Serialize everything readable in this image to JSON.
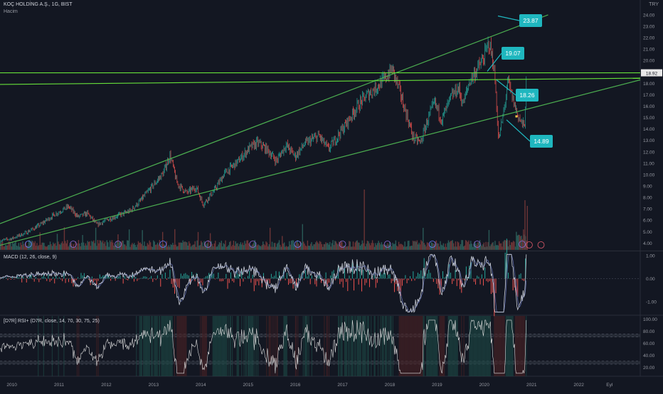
{
  "header": {
    "symbol": "KOÇ HOLDİNG A.Ş., 1G, BIST",
    "volume_label": "Hacim",
    "currency": "TRY"
  },
  "macd_label": "MACD (12, 26, close, 9)",
  "rsi_label": "[D7R] RSI+ (D7R, close, 14, 70, 30, 75, 25)",
  "colors": {
    "background": "#131722",
    "trendline": "#4caf50",
    "trendline_bright": "#66e03a",
    "candle_up": "#26a69a",
    "candle_down": "#ef5350",
    "callout": "#1fb7bf",
    "price_tag": "#e8e8e8",
    "macd_line": "#c9cdd6",
    "rsi_line": "#dddddd"
  },
  "chart_data": [
    {
      "type": "candlestick",
      "title": "KOÇ HOLDİNG A.Ş., 1G, BIST",
      "y_axis_ticks": [
        "4.00",
        "5.00",
        "6.00",
        "7.00",
        "8.00",
        "9.00",
        "10.00",
        "11.00",
        "12.00",
        "13.00",
        "14.00",
        "15.00",
        "16.00",
        "17.00",
        "18.00",
        "19.00",
        "20.00",
        "21.00",
        "22.00",
        "23.00",
        "24.00"
      ],
      "y_range": [
        3.4,
        25.3
      ],
      "x_axis_ticks": [
        "2010",
        "2011",
        "2012",
        "2013",
        "2014",
        "2015",
        "2016",
        "2017",
        "2018",
        "2019",
        "2020",
        "2021",
        "2022",
        "Eyl"
      ],
      "x_range": [
        2009.75,
        2023.3
      ],
      "last_price": "18.92",
      "price_path": [
        [
          2009.75,
          4.2
        ],
        [
          2010.0,
          4.4
        ],
        [
          2010.3,
          4.9
        ],
        [
          2010.6,
          5.6
        ],
        [
          2010.9,
          6.5
        ],
        [
          2011.2,
          7.2
        ],
        [
          2011.4,
          6.3
        ],
        [
          2011.6,
          6.6
        ],
        [
          2011.8,
          5.6
        ],
        [
          2012.0,
          6.0
        ],
        [
          2012.3,
          6.5
        ],
        [
          2012.5,
          6.8
        ],
        [
          2012.7,
          7.6
        ],
        [
          2012.9,
          8.6
        ],
        [
          2013.2,
          10.1
        ],
        [
          2013.35,
          11.7
        ],
        [
          2013.5,
          9.2
        ],
        [
          2013.7,
          8.4
        ],
        [
          2013.9,
          8.9
        ],
        [
          2014.05,
          7.4
        ],
        [
          2014.3,
          8.7
        ],
        [
          2014.5,
          10.1
        ],
        [
          2014.8,
          11.2
        ],
        [
          2015.0,
          12.2
        ],
        [
          2015.2,
          12.8
        ],
        [
          2015.4,
          12.2
        ],
        [
          2015.6,
          11.2
        ],
        [
          2015.8,
          12.6
        ],
        [
          2016.0,
          11.6
        ],
        [
          2016.2,
          12.7
        ],
        [
          2016.5,
          13.4
        ],
        [
          2016.7,
          12.2
        ],
        [
          2016.9,
          13.4
        ],
        [
          2017.1,
          14.6
        ],
        [
          2017.3,
          15.9
        ],
        [
          2017.5,
          16.9
        ],
        [
          2017.7,
          17.6
        ],
        [
          2017.9,
          18.4
        ],
        [
          2018.05,
          19.3
        ],
        [
          2018.2,
          17.4
        ],
        [
          2018.35,
          15.3
        ],
        [
          2018.5,
          13.2
        ],
        [
          2018.65,
          12.8
        ],
        [
          2018.8,
          14.8
        ],
        [
          2018.95,
          16.3
        ],
        [
          2019.1,
          14.8
        ],
        [
          2019.3,
          16.8
        ],
        [
          2019.45,
          17.6
        ],
        [
          2019.55,
          16.2
        ],
        [
          2019.7,
          18.3
        ],
        [
          2019.85,
          19.2
        ],
        [
          2020.0,
          20.3
        ],
        [
          2020.1,
          21.6
        ],
        [
          2020.2,
          19.6
        ],
        [
          2020.25,
          16.8
        ],
        [
          2020.3,
          12.9
        ],
        [
          2020.4,
          15.2
        ],
        [
          2020.5,
          18.2
        ],
        [
          2020.6,
          16.6
        ],
        [
          2020.7,
          15.3
        ],
        [
          2020.78,
          14.6
        ],
        [
          2020.85,
          14.1
        ],
        [
          2020.9,
          18.9
        ]
      ],
      "trendlines": [
        {
          "name": "upper channel",
          "start": [
            2009.75,
            5.7
          ],
          "end": [
            2021.35,
            24.0
          ]
        },
        {
          "name": "horizontal resistance",
          "start": [
            2009.75,
            18.92
          ],
          "end": [
            2023.3,
            18.92
          ]
        },
        {
          "name": "middle line",
          "start": [
            2009.75,
            17.9
          ],
          "end": [
            2023.3,
            18.45
          ]
        },
        {
          "name": "lower channel",
          "start": [
            2009.75,
            3.8
          ],
          "end": [
            2023.3,
            18.3
          ]
        }
      ],
      "annotations": [
        {
          "text": "23.87",
          "anchor": [
            2021.1,
            23.87
          ]
        },
        {
          "text": "19.07",
          "anchor": [
            2020.95,
            19.07
          ]
        },
        {
          "text": "18.26",
          "anchor": [
            2021.1,
            18.26
          ]
        },
        {
          "text": "14.89",
          "anchor": [
            2021.3,
            14.89
          ]
        }
      ]
    },
    {
      "type": "line",
      "title": "MACD (12, 26, close, 9)",
      "y_axis_ticks": [
        "1.00",
        "0.00",
        "-1.00"
      ],
      "y_range": [
        -1.55,
        1.15
      ]
    },
    {
      "type": "line",
      "title": "[D7R] RSI+ (D7R, close, 14, 70, 30, 75, 25)",
      "y_axis_ticks": [
        "100.00",
        "80.00",
        "60.00",
        "40.00",
        "20.00"
      ],
      "y_range": [
        5,
        105
      ],
      "levels": [
        75,
        70,
        30,
        25
      ]
    }
  ]
}
